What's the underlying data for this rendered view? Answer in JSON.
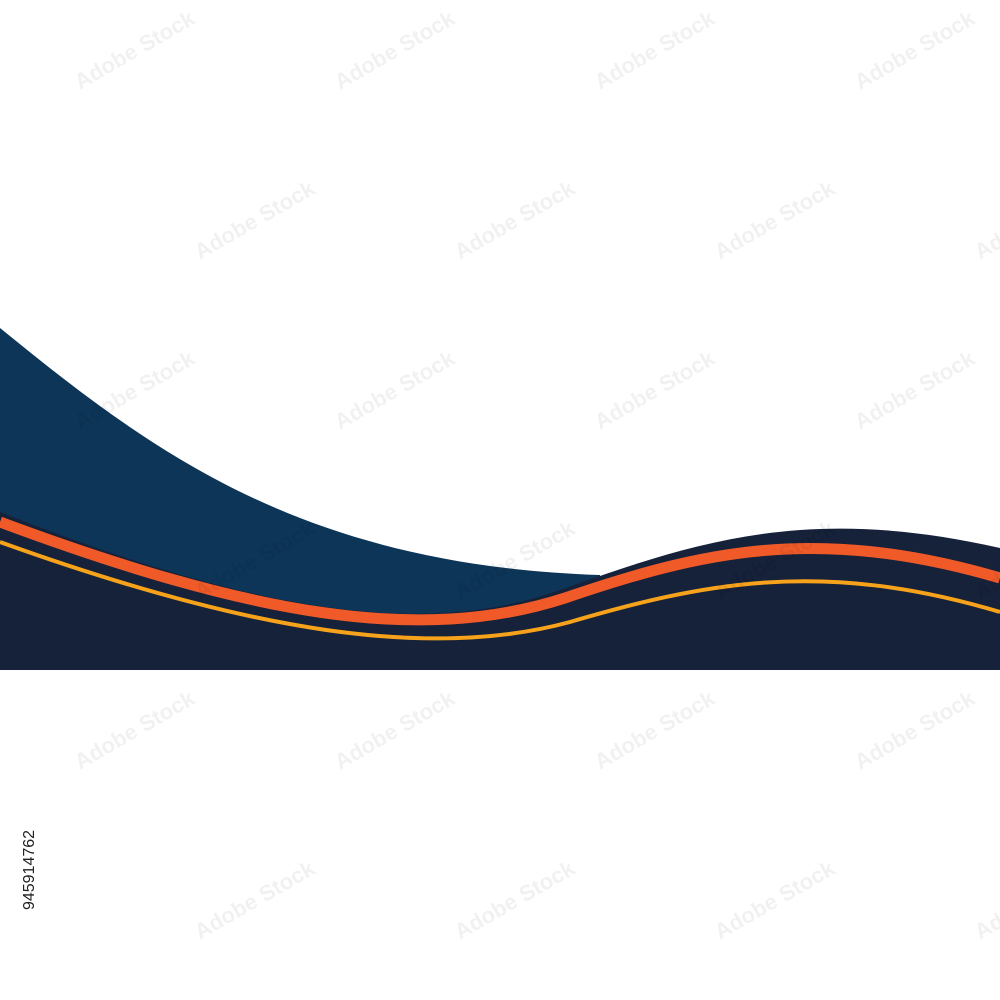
{
  "image_id": "945914762",
  "watermark": "Adobe Stock"
}
